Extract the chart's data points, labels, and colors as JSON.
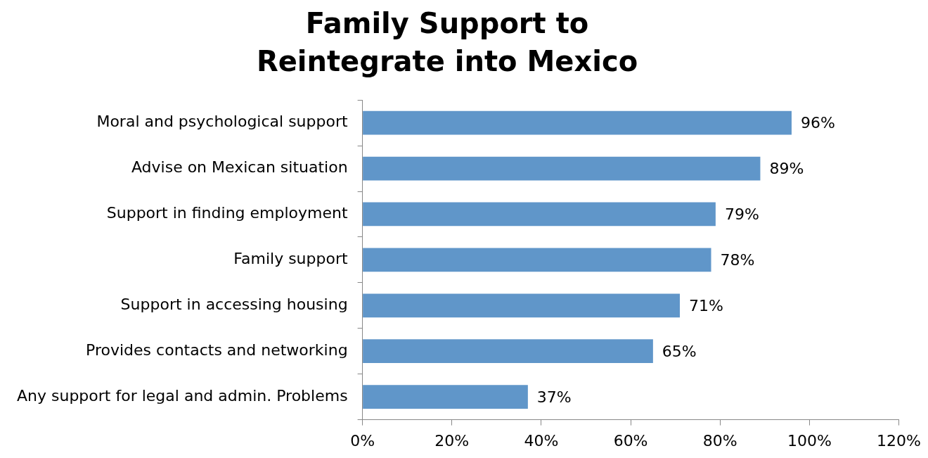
{
  "chart_data": {
    "type": "bar",
    "orientation": "horizontal",
    "title": "Family Support to Reintegrate into Mexico",
    "categories": [
      "Moral and psychological support",
      "Advise on Mexican situation",
      "Support in finding employment",
      "Family support",
      "Support in accessing housing",
      "Provides contacts and networking",
      "Any support for legal and admin. Problems"
    ],
    "values": [
      96,
      89,
      79,
      78,
      71,
      65,
      37
    ],
    "value_labels": [
      "96%",
      "89%",
      "79%",
      "78%",
      "71%",
      "65%",
      "37%"
    ],
    "color": "#6096c9",
    "xlim": [
      0,
      120
    ],
    "xticks": [
      {
        "value": 0,
        "label": "0%"
      },
      {
        "value": 20,
        "label": "20%"
      },
      {
        "value": 40,
        "label": "40%"
      },
      {
        "value": 60,
        "label": "60%"
      },
      {
        "value": 80,
        "label": "80%"
      },
      {
        "value": 100,
        "label": "100%"
      },
      {
        "value": 120,
        "label": "120%"
      }
    ],
    "grid": false,
    "legend": false
  }
}
